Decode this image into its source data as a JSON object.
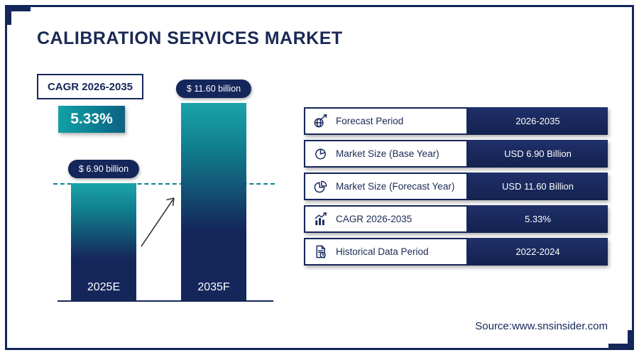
{
  "page": {
    "title": "CALIBRATION SERVICES MARKET",
    "source": "Source:www.snsinsider.com"
  },
  "cagr_badge": {
    "label": "CAGR 2026-2035",
    "value": "5.33%"
  },
  "chart_data": {
    "type": "bar",
    "title": "Calibration Services Market size",
    "categories": [
      "2025E",
      "2035F"
    ],
    "values": [
      6.9,
      11.6
    ],
    "unit": "USD Billion",
    "bar_labels": [
      "$ 6.90 billion",
      "$ 11.60 billion"
    ],
    "ylim": [
      0,
      12
    ],
    "dashed_line_value": 6.9,
    "legend": "none",
    "grid": "off"
  },
  "info_table": {
    "rows": [
      {
        "icon": "globe-growth-icon",
        "label": "Forecast Period",
        "value": "2026-2035"
      },
      {
        "icon": "pie-chart-icon",
        "label": "Market Size (Base Year)",
        "value": "USD 6.90 Billion"
      },
      {
        "icon": "pie-chart-exploded-icon",
        "label": "Market Size (Forecast Year)",
        "value": "USD 11.60 Billion"
      },
      {
        "icon": "bar-growth-icon",
        "label": "CAGR 2026-2035",
        "value": "5.33%"
      },
      {
        "icon": "document-clock-icon",
        "label": "Historical Data Period",
        "value": "2022-2024"
      }
    ]
  },
  "colors": {
    "navy": "#15265B",
    "teal": "#12A2A6",
    "white": "#FFFFFF"
  }
}
